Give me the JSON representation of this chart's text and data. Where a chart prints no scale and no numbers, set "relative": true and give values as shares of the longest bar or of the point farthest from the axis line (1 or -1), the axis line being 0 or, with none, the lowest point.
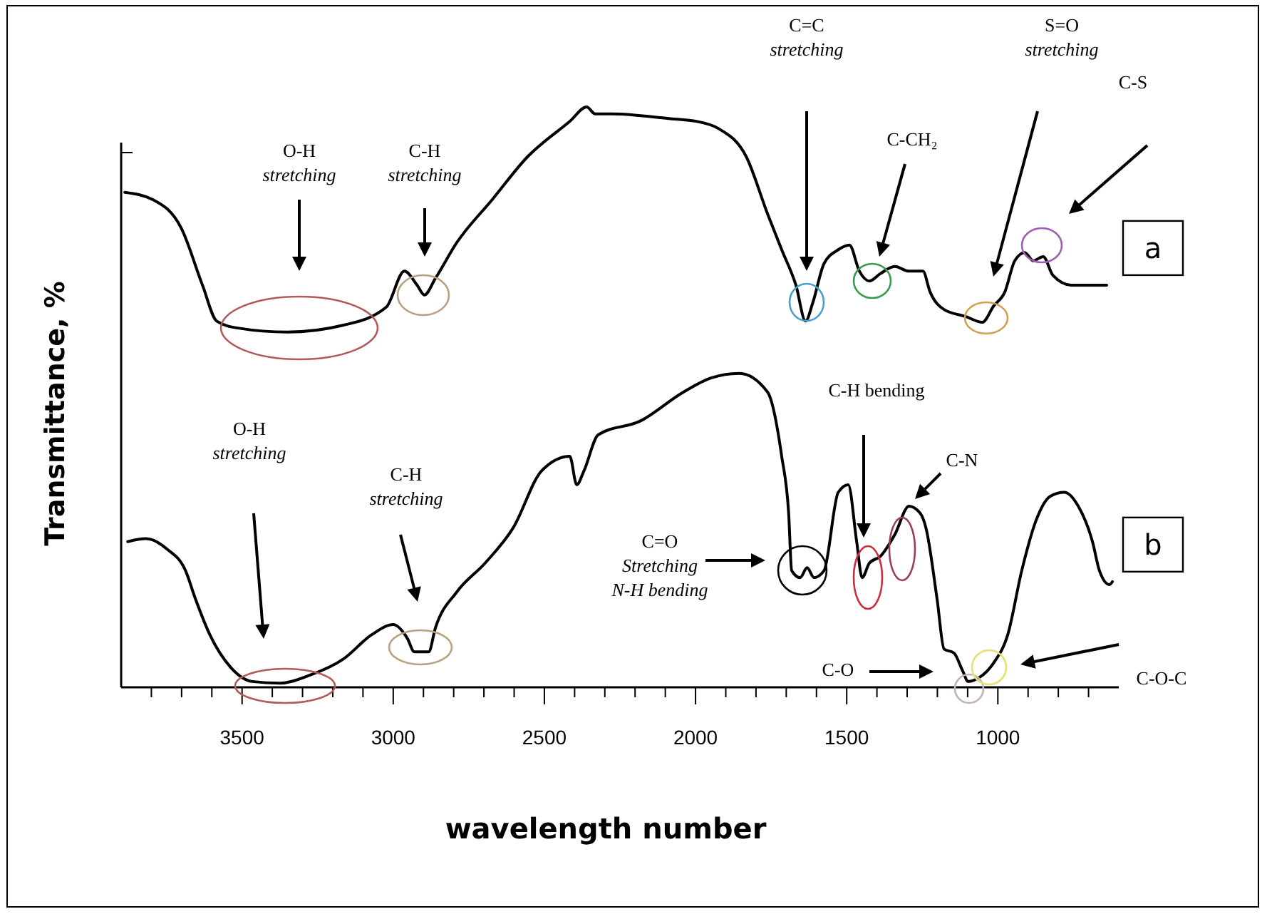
{
  "chart_data": {
    "type": "line",
    "relative": true,
    "ylabel": "Transmittance, %",
    "xlabel": "wavelength number",
    "xlim": [
      3900,
      600
    ],
    "xticks": [
      {
        "value": 3800,
        "label": null
      },
      {
        "value": 3700,
        "label": null
      },
      {
        "value": 3600,
        "label": null
      },
      3500,
      {
        "value": 3400,
        "label": null
      },
      {
        "value": 3300,
        "label": null
      },
      {
        "value": 3200,
        "label": null
      },
      {
        "value": 3100,
        "label": null
      },
      3000,
      {
        "value": 2900,
        "label": null
      },
      {
        "value": 2800,
        "label": null
      },
      {
        "value": 2700,
        "label": null
      },
      {
        "value": 2600,
        "label": null
      },
      2500,
      {
        "value": 2400,
        "label": null
      },
      {
        "value": 2300,
        "label": null
      },
      {
        "value": 2200,
        "label": null
      },
      {
        "value": 2100,
        "label": null
      },
      2000,
      {
        "value": 1900,
        "label": null
      },
      {
        "value": 1800,
        "label": null
      },
      {
        "value": 1700,
        "label": null
      },
      {
        "value": 1600,
        "label": null
      },
      1500,
      {
        "value": 1400,
        "label": null
      },
      {
        "value": 1300,
        "label": null
      },
      {
        "value": 1200,
        "label": null
      },
      {
        "value": 1100,
        "label": null
      },
      1000,
      {
        "value": 900,
        "label": null
      },
      {
        "value": 800,
        "label": null
      },
      {
        "value": 700,
        "label": null
      }
    ],
    "tick_labels": "x",
    "series": [
      {
        "name": "a",
        "color": "#000000",
        "x": [
          3888,
          3794,
          3701,
          3631,
          3584,
          3514,
          3350,
          3164,
          3023,
          2963,
          2921,
          2897,
          2860,
          2790,
          2673,
          2556,
          2416,
          2360,
          2332,
          2276,
          2089,
          1995,
          1925,
          1832,
          1762,
          1715,
          1668,
          1636,
          1612,
          1575,
          1528,
          1491,
          1458,
          1425,
          1388,
          1341,
          1294,
          1248,
          1224,
          1178,
          1107,
          1051,
          1014,
          977,
          944,
          911,
          883,
          850,
          818,
          757,
          640
        ],
        "values": [
          0.853,
          0.84,
          0.791,
          0.693,
          0.631,
          0.619,
          0.612,
          0.624,
          0.655,
          0.717,
          0.693,
          0.676,
          0.705,
          0.766,
          0.84,
          0.914,
          0.975,
          1.0,
          0.988,
          0.988,
          0.98,
          0.975,
          0.963,
          0.914,
          0.816,
          0.754,
          0.693,
          0.631,
          0.663,
          0.73,
          0.754,
          0.762,
          0.717,
          0.7,
          0.713,
          0.725,
          0.717,
          0.717,
          0.681,
          0.651,
          0.639,
          0.629,
          0.657,
          0.681,
          0.735,
          0.749,
          0.735,
          0.742,
          0.71,
          0.693,
          0.693
        ]
      },
      {
        "name": "b",
        "color": "#000000",
        "x": [
          3878,
          3818,
          3748,
          3687,
          3654,
          3607,
          3537,
          3467,
          3374,
          3280,
          3164,
          3070,
          3000,
          2953,
          2930,
          2883,
          2860,
          2790,
          2696,
          2603,
          2509,
          2416,
          2393,
          2369,
          2322,
          2182,
          2042,
          1949,
          1855,
          1762,
          1715,
          1692,
          1682,
          1654,
          1631,
          1608,
          1575,
          1528,
          1495,
          1467,
          1449,
          1425,
          1388,
          1341,
          1294,
          1257,
          1238,
          1201,
          1178,
          1145,
          1117,
          1098,
          1061,
          1014,
          967,
          921,
          874,
          827,
          780,
          734,
          687,
          664,
          631,
          621
        ],
        "values": [
          0.251,
          0.256,
          0.238,
          0.201,
          0.152,
          0.091,
          0.034,
          0.01,
          0.007,
          0.02,
          0.049,
          0.091,
          0.108,
          0.084,
          0.061,
          0.061,
          0.103,
          0.164,
          0.214,
          0.275,
          0.373,
          0.398,
          0.349,
          0.373,
          0.435,
          0.459,
          0.508,
          0.533,
          0.541,
          0.509,
          0.398,
          0.3,
          0.201,
          0.189,
          0.206,
          0.189,
          0.201,
          0.336,
          0.349,
          0.251,
          0.189,
          0.214,
          0.226,
          0.263,
          0.312,
          0.3,
          0.275,
          0.152,
          0.066,
          0.059,
          0.029,
          0.01,
          0.017,
          0.042,
          0.091,
          0.201,
          0.287,
          0.329,
          0.336,
          0.312,
          0.251,
          0.201,
          0.177,
          0.182
        ]
      }
    ],
    "annotations": [
      "O-H\nstretching",
      "C-H\nstretching",
      "C=C\nstretching",
      "C-CH₂",
      "S=O\nstretching",
      "C-S",
      "O-H\nstretching",
      "C-H\nstretching",
      "C=O\nStretching\nN-H bending",
      "C-H bending",
      "C-N",
      "C-O",
      "C-O-C"
    ]
  }
}
